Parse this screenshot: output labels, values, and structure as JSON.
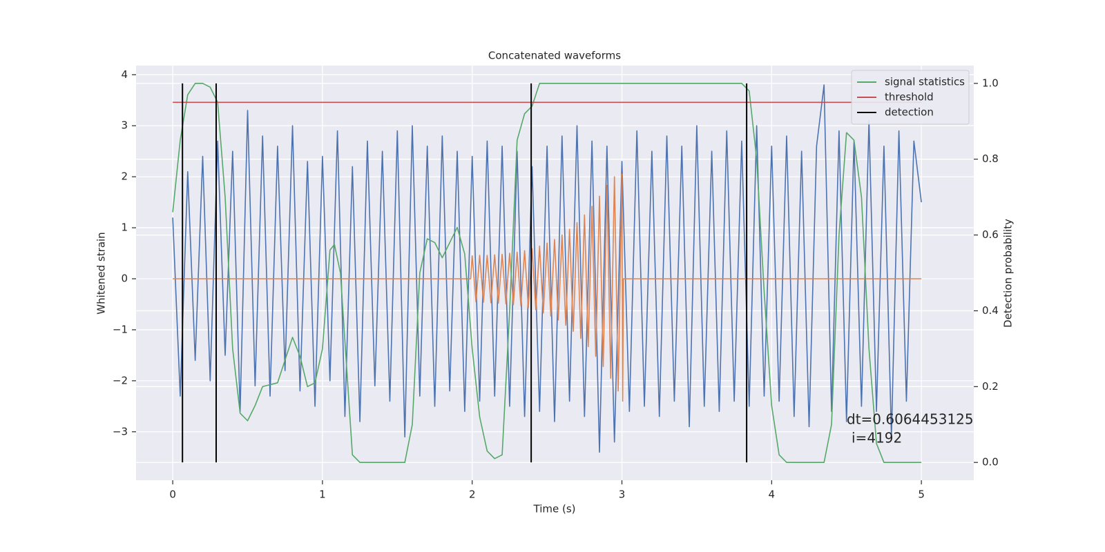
{
  "chart_data": {
    "type": "line",
    "title": "Concatenated waveforms",
    "xlabel": "Time (s)",
    "ylabel": "Whitened strain",
    "y2label": "Detection probability",
    "xlim": [
      -0.245,
      5.35
    ],
    "ylim": [
      -3.95,
      4.18
    ],
    "y2lim": [
      -0.047,
      1.047
    ],
    "xticks": [
      0,
      1,
      2,
      3,
      4,
      5
    ],
    "yticks": [
      {
        "value": -3,
        "label": "−3"
      },
      {
        "value": -2,
        "label": "−2"
      },
      {
        "value": -1,
        "label": "−1"
      },
      0,
      1,
      2,
      3,
      4
    ],
    "y2ticks": [
      {
        "value": 0,
        "label": "0.0"
      },
      0.2,
      0.4,
      0.6,
      0.8,
      {
        "value": 1,
        "label": "1.0"
      }
    ],
    "grid": true,
    "legend": "upper right",
    "annotation": [
      "dt=0.6064453125",
      "i=4192"
    ],
    "series": [
      {
        "color": "#4c72b0",
        "x": [
          0,
          0.05,
          0.1,
          0.15,
          0.2,
          0.25,
          0.3,
          0.35,
          0.4,
          0.45,
          0.5,
          0.55,
          0.6,
          0.65,
          0.7,
          0.75,
          0.8,
          0.85,
          0.9,
          0.95,
          1,
          1.05,
          1.1,
          1.15,
          1.2,
          1.25,
          1.3,
          1.35,
          1.4,
          1.45,
          1.5,
          1.55,
          1.6,
          1.65,
          1.7,
          1.75,
          1.8,
          1.85,
          1.9,
          1.95,
          2,
          2.05,
          2.1,
          2.15,
          2.2,
          2.25,
          2.3,
          2.35,
          2.4,
          2.45,
          2.5,
          2.55,
          2.6,
          2.65,
          2.7,
          2.75,
          2.8,
          2.85,
          2.9,
          2.95,
          3,
          3.05,
          3.1,
          3.15,
          3.2,
          3.25,
          3.3,
          3.35,
          3.4,
          3.45,
          3.5,
          3.55,
          3.6,
          3.65,
          3.7,
          3.75,
          3.8,
          3.85,
          3.9,
          3.95,
          4,
          4.05,
          4.1,
          4.15,
          4.2,
          4.25,
          4.3,
          4.35,
          4.4,
          4.45,
          4.5,
          4.55,
          4.6,
          4.65,
          4.7,
          4.75,
          4.8,
          4.85,
          4.9,
          4.95,
          5
        ],
        "values": [
          1.2,
          -2.3,
          2.1,
          -1.6,
          2.4,
          -2.0,
          2.7,
          -1.5,
          2.5,
          -2.6,
          3.3,
          -2.1,
          2.8,
          -2.3,
          2.6,
          -1.8,
          3.0,
          -2.2,
          2.3,
          -2.5,
          2.4,
          -2.0,
          2.9,
          -2.7,
          2.2,
          -2.8,
          2.7,
          -2.1,
          2.5,
          -2.4,
          2.9,
          -3.1,
          3.0,
          -2.3,
          2.6,
          -2.5,
          2.8,
          -2.2,
          2.5,
          -2.6,
          2.4,
          -2.4,
          2.7,
          -2.3,
          2.6,
          -2.5,
          2.5,
          -2.7,
          2.2,
          -2.6,
          2.6,
          -2.8,
          2.8,
          -2.4,
          3.0,
          -2.7,
          2.7,
          -3.4,
          2.6,
          -3.2,
          2.3,
          -2.6,
          2.9,
          -2.5,
          2.5,
          -2.7,
          2.8,
          -2.4,
          2.6,
          -2.9,
          3.0,
          -2.5,
          2.5,
          -2.6,
          2.9,
          -2.4,
          2.7,
          -2.5,
          3.0,
          -2.3,
          2.6,
          -2.4,
          2.8,
          -2.7,
          2.5,
          -2.9,
          2.6,
          3.8,
          -2.6,
          2.9,
          -2.8,
          2.7,
          -2.5,
          3.1,
          -2.6,
          2.6,
          -3.1,
          2.9,
          -2.4,
          2.7,
          1.5
        ]
      },
      {
        "color": "#dd8452",
        "x": [
          0,
          1.99,
          2,
          2.025,
          2.05,
          2.075,
          2.1,
          2.125,
          2.15,
          2.175,
          2.2,
          2.225,
          2.25,
          2.275,
          2.3,
          2.325,
          2.35,
          2.375,
          2.4,
          2.425,
          2.45,
          2.475,
          2.5,
          2.525,
          2.55,
          2.575,
          2.6,
          2.625,
          2.65,
          2.675,
          2.7,
          2.725,
          2.75,
          2.775,
          2.8,
          2.825,
          2.85,
          2.875,
          2.9,
          2.925,
          2.95,
          2.975,
          3,
          3.005,
          3.01,
          5
        ],
        "values": [
          0,
          0,
          0.45,
          -0.45,
          0.46,
          -0.46,
          0.46,
          -0.47,
          0.47,
          -0.48,
          0.48,
          -0.49,
          0.5,
          -0.51,
          0.52,
          -0.53,
          0.55,
          -0.57,
          0.59,
          -0.61,
          0.64,
          -0.67,
          0.7,
          -0.73,
          0.77,
          -0.81,
          0.86,
          -0.91,
          0.97,
          -1.03,
          1.1,
          -1.17,
          1.25,
          -1.33,
          1.42,
          -1.52,
          1.62,
          -1.72,
          1.83,
          -1.95,
          2.0,
          -2.2,
          2.05,
          -2.4,
          0,
          0
        ]
      },
      {
        "name": "signal statistics",
        "color": "#55a868",
        "axis": "y2",
        "x": [
          0,
          0.05,
          0.1,
          0.15,
          0.2,
          0.25,
          0.3,
          0.35,
          0.4,
          0.45,
          0.5,
          0.55,
          0.6,
          0.7,
          0.8,
          0.85,
          0.9,
          0.95,
          1,
          1.05,
          1.08,
          1.12,
          1.17,
          1.2,
          1.25,
          1.55,
          1.6,
          1.65,
          1.7,
          1.75,
          1.8,
          1.85,
          1.9,
          1.95,
          2,
          2.05,
          2.1,
          2.15,
          2.2,
          2.25,
          2.3,
          2.35,
          2.4,
          2.45,
          2.5,
          3.8,
          3.85,
          3.9,
          3.95,
          4,
          4.05,
          4.1,
          4.35,
          4.4,
          4.45,
          4.5,
          4.55,
          4.6,
          4.65,
          4.7,
          4.75,
          5
        ],
        "values": [
          0.66,
          0.85,
          0.97,
          1.0,
          1.0,
          0.99,
          0.95,
          0.7,
          0.3,
          0.13,
          0.11,
          0.15,
          0.2,
          0.21,
          0.33,
          0.28,
          0.2,
          0.21,
          0.3,
          0.56,
          0.575,
          0.5,
          0.2,
          0.02,
          0,
          0,
          0.1,
          0.5,
          0.59,
          0.58,
          0.54,
          0.58,
          0.62,
          0.55,
          0.3,
          0.12,
          0.03,
          0.01,
          0.02,
          0.4,
          0.85,
          0.92,
          0.94,
          1.0,
          1.0,
          1.0,
          0.98,
          0.8,
          0.45,
          0.15,
          0.02,
          0,
          0,
          0.1,
          0.6,
          0.87,
          0.85,
          0.7,
          0.3,
          0.05,
          0,
          0
        ]
      },
      {
        "name": "threshold",
        "color": "#c44e52",
        "axis": "y2",
        "x": [
          0,
          5
        ],
        "values": [
          0.95,
          0.95
        ]
      },
      {
        "name": "detection",
        "color": "#000000",
        "axis": "y2",
        "type": "vline",
        "x": [
          0.065,
          0.29,
          2.394,
          3.833
        ],
        "ymin": 0,
        "ymax": 1
      }
    ]
  }
}
